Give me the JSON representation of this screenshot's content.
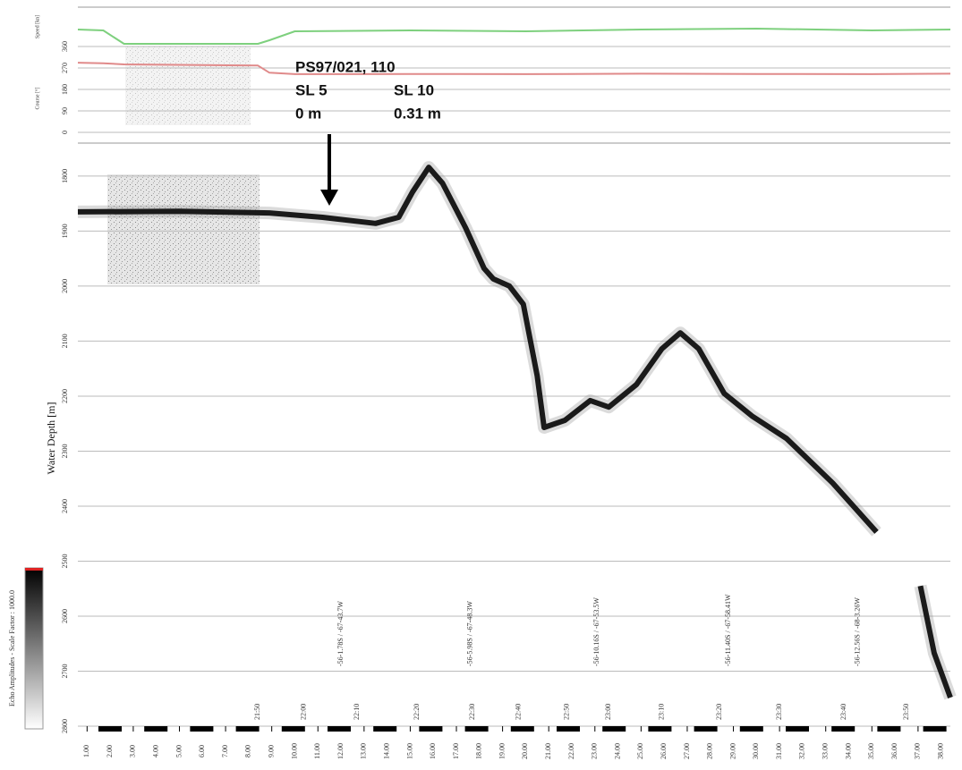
{
  "chart_data": [
    {
      "type": "line",
      "ylabel": "Course [°]",
      "y2label": "Speed [kn]",
      "xlim": [
        0.6,
        38.4
      ],
      "ylim": [
        0,
        525
      ],
      "yticks": [
        0,
        90,
        180,
        270,
        360
      ],
      "y2lim": [
        0,
        14
      ],
      "grid": true,
      "x": [
        0.6,
        1.7,
        2.6,
        8.4,
        8.9,
        10,
        15,
        20,
        25,
        30,
        35,
        38.4
      ],
      "series": [
        {
          "color": "#7ed07e",
          "axis": "y2",
          "values": [
            11.5,
            11.4,
            9.9,
            9.9,
            10.3,
            11.3,
            11.4,
            11.3,
            11.5,
            11.6,
            11.4,
            11.5
          ]
        },
        {
          "color": "#e08a8a",
          "values": [
            292,
            290,
            285,
            280,
            250,
            244,
            245,
            244,
            246,
            245,
            244,
            246
          ]
        }
      ]
    },
    {
      "type": "line",
      "ylabel": "Water Depth [m]",
      "xlim": [
        0.6,
        38.4
      ],
      "xticks": [
        {
          "value": 1,
          "label": "1.00"
        },
        {
          "value": 2,
          "label": "2.00"
        },
        {
          "value": 3,
          "label": "3.00"
        },
        {
          "value": 4,
          "label": "4.00"
        },
        {
          "value": 5,
          "label": "5.00"
        },
        {
          "value": 6,
          "label": "6.00"
        },
        {
          "value": 7,
          "label": "7.00"
        },
        {
          "value": 8,
          "label": "8.00"
        },
        {
          "value": 9,
          "label": "9.00"
        },
        {
          "value": 10,
          "label": "10.00"
        },
        {
          "value": 11,
          "label": "11.00"
        },
        {
          "value": 12,
          "label": "12.00"
        },
        {
          "value": 13,
          "label": "13.00"
        },
        {
          "value": 14,
          "label": "14.00"
        },
        {
          "value": 15,
          "label": "15.00"
        },
        {
          "value": 16,
          "label": "16.00"
        },
        {
          "value": 17,
          "label": "17.00"
        },
        {
          "value": 18,
          "label": "18.00"
        },
        {
          "value": 19,
          "label": "19.00"
        },
        {
          "value": 20,
          "label": "20.00"
        },
        {
          "value": 21,
          "label": "21.00"
        },
        {
          "value": 22,
          "label": "22.00"
        },
        {
          "value": 23,
          "label": "23.00"
        },
        {
          "value": 24,
          "label": "24.00"
        },
        {
          "value": 25,
          "label": "25.00"
        },
        {
          "value": 26,
          "label": "26.00"
        },
        {
          "value": 27,
          "label": "27.00"
        },
        {
          "value": 28,
          "label": "28.00"
        },
        {
          "value": 29,
          "label": "29.00"
        },
        {
          "value": 30,
          "label": "30.00"
        },
        {
          "value": 31,
          "label": "31.00"
        },
        {
          "value": 32,
          "label": "32.00"
        },
        {
          "value": 33,
          "label": "33.00"
        },
        {
          "value": 34,
          "label": "34.00"
        },
        {
          "value": 35,
          "label": "35.00"
        },
        {
          "value": 36,
          "label": "36.00"
        },
        {
          "value": 37,
          "label": "37.00"
        },
        {
          "value": 38,
          "label": "38.00"
        }
      ],
      "ylim": [
        2800,
        1740
      ],
      "yticks": [
        1800,
        1900,
        2000,
        2100,
        2200,
        2300,
        2400,
        2500,
        2600,
        2700,
        2800
      ],
      "grid": true,
      "x": [
        0.6,
        5.0,
        8.9,
        11.2,
        13.5,
        14.5,
        15.1,
        15.8,
        16.4,
        17.4,
        18.2,
        18.6,
        19.3,
        19.9,
        20.5,
        20.8,
        21.7,
        22.8,
        23.6,
        24.8,
        25.9,
        26.7,
        27.5,
        28.6,
        29.8,
        31.3,
        33.3,
        35.2,
        36.5,
        37.1,
        37.7,
        38.4
      ],
      "series": [
        {
          "color": "#1a1a1a",
          "values": [
            1865,
            1864,
            1867,
            1875,
            1886,
            1875,
            1829,
            1784,
            1813,
            1894,
            1968,
            1987,
            2000,
            2033,
            2163,
            2257,
            2244,
            2208,
            2220,
            2179,
            2114,
            2085,
            2114,
            2195,
            2236,
            2277,
            2358,
            2447,
            null,
            2545,
            2667,
            2748
          ]
        }
      ],
      "time_labels": [
        {
          "x": 8.4,
          "label": "21:50"
        },
        {
          "x": 10.4,
          "label": "22:00"
        },
        {
          "x": 12.7,
          "label": "22:10"
        },
        {
          "x": 15.3,
          "label": "22:20"
        },
        {
          "x": 17.7,
          "label": "22:30"
        },
        {
          "x": 19.7,
          "label": "22:40"
        },
        {
          "x": 21.8,
          "label": "22:50"
        },
        {
          "x": 23.6,
          "label": "23:00"
        },
        {
          "x": 25.9,
          "label": "23:10"
        },
        {
          "x": 28.4,
          "label": "23:20"
        },
        {
          "x": 31.0,
          "label": "23:30"
        },
        {
          "x": 33.8,
          "label": "23:40"
        },
        {
          "x": 36.5,
          "label": "23:50"
        }
      ],
      "position_labels": [
        {
          "x": 12.0,
          "label": "-56-1.78S / -67-43.7W"
        },
        {
          "x": 17.6,
          "label": "-56-5.98S / -67-48.3W"
        },
        {
          "x": 23.1,
          "label": "-56-10.16S / -67-53.5W"
        },
        {
          "x": 28.8,
          "label": "-56-11.40S / -67-58.41W"
        },
        {
          "x": 34.4,
          "label": "-56-12.56S / -68-3.26W"
        }
      ],
      "station": {
        "name": "PS97/021, 110",
        "left_core": "SL 5",
        "right_core": "SL 10",
        "left_depth": "0 m",
        "right_depth": "0.31 m"
      },
      "colorbar_label": "Echo Amplitudes - Scale Factor : 1000.0"
    }
  ]
}
